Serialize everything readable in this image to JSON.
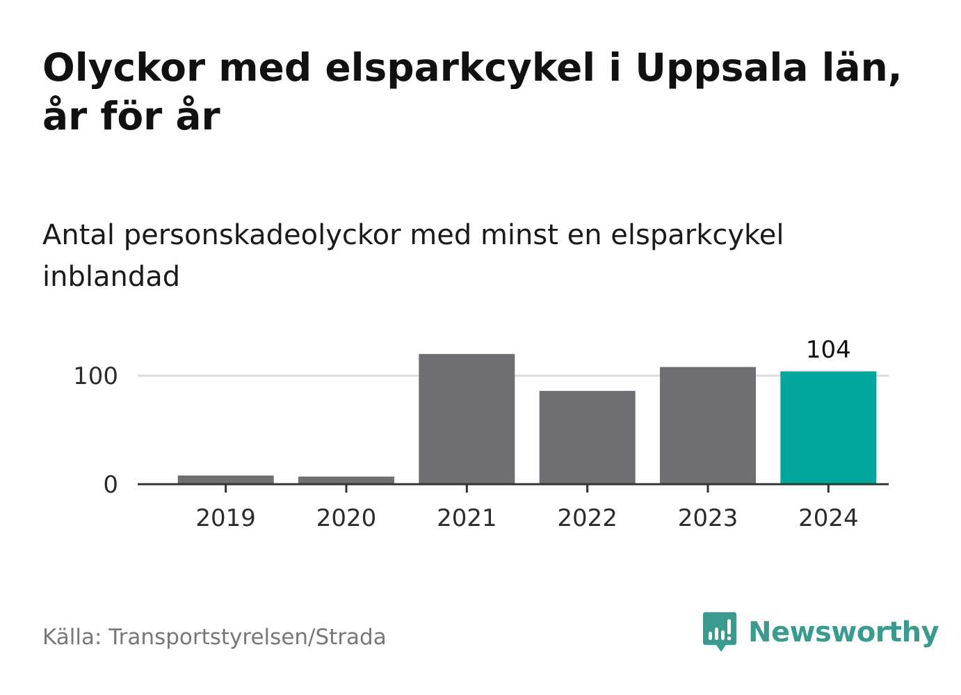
{
  "header": {
    "title": "Olyckor med elsparkcykel i Uppsala län, år för år",
    "subtitle": "Antal personskadeolyckor med minst en elsparkcykel inblandad"
  },
  "chart_data": {
    "type": "bar",
    "categories": [
      "2019",
      "2020",
      "2021",
      "2022",
      "2023",
      "2024"
    ],
    "values": [
      8,
      7,
      120,
      86,
      108,
      104
    ],
    "highlight_index": 5,
    "data_labels": [
      {
        "index": 5,
        "text": "104"
      }
    ],
    "yticks": [
      0,
      100
    ],
    "ylim": [
      0,
      140
    ],
    "grid": true,
    "colors": {
      "bar": "#6e6e73",
      "highlight": "#00a59b",
      "grid": "#dddddd",
      "axis": "#333333"
    }
  },
  "footer": {
    "source": "Källa: Transportstyrelsen/Strada",
    "brand": "Newsworthy",
    "brand_color": "#3a9a8f",
    "brand_icon": "chart-speech-bubble-icon"
  }
}
